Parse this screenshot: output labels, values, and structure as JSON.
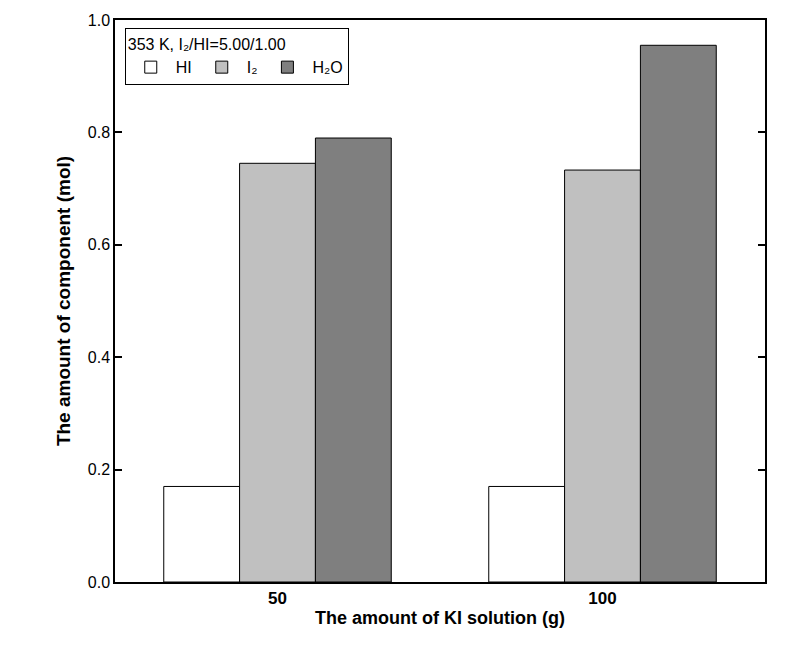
{
  "chart_data": {
    "type": "bar",
    "x_label": "The amount of KI solution (g)",
    "y_label": "The amount of component (mol)",
    "legend_title": "353 K, I₂/HI=5.00/1.00",
    "categories": [
      "50",
      "100"
    ],
    "series": [
      {
        "name": "HI",
        "color": "#ffffff",
        "values": [
          0.17,
          0.17
        ]
      },
      {
        "name": "I₂",
        "color": "#c0c0c0",
        "values": [
          0.745,
          0.733
        ]
      },
      {
        "name": "H₂O",
        "color": "#7f7f7f",
        "values": [
          0.79,
          0.955
        ]
      }
    ],
    "ylim": [
      0,
      1
    ],
    "yticks": [
      {
        "value": 0,
        "label": "0.0"
      },
      0.2,
      0.4,
      0.6,
      0.8,
      {
        "value": 1,
        "label": "1.0"
      }
    ],
    "legend": "upper left",
    "grid": false
  }
}
